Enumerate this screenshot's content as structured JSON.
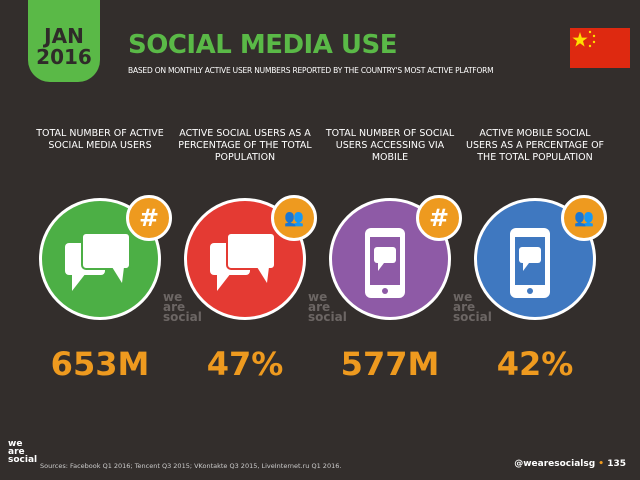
{
  "header": {
    "month": "JAN",
    "year": "2016",
    "title": "SOCIAL MEDIA USE",
    "subtitle": "BASED ON MONTHLY ACTIVE USER NUMBERS REPORTED BY THE COUNTRY'S MOST ACTIVE PLATFORM",
    "flag": "china-flag-icon"
  },
  "columns": [
    {
      "label": "TOTAL NUMBER OF ACTIVE SOCIAL MEDIA USERS",
      "value": "653M",
      "color": "#4caf45",
      "icon": "chat-bubbles-icon",
      "badge": "hashtag-icon",
      "badge_text": "#"
    },
    {
      "label": "ACTIVE SOCIAL USERS AS A PERCENTAGE OF THE TOTAL POPULATION",
      "value": "47%",
      "color": "#e43a33",
      "icon": "chat-bubbles-icon",
      "badge": "people-icon",
      "badge_text": "👥"
    },
    {
      "label": "TOTAL NUMBER OF SOCIAL USERS ACCESSING VIA MOBILE",
      "value": "577M",
      "color": "#8e5aa6",
      "icon": "mobile-chat-icon",
      "badge": "hashtag-icon",
      "badge_text": "#"
    },
    {
      "label": "ACTIVE MOBILE SOCIAL USERS AS A PERCENTAGE OF THE TOTAL POPULATION",
      "value": "42%",
      "color": "#3f78c0",
      "icon": "mobile-chat-icon",
      "badge": "people-icon",
      "badge_text": "👥"
    }
  ],
  "watermark": "we are social",
  "footer": {
    "sources": "Sources: Facebook Q1 2016; Tencent Q3 2015; VKontakte Q3 2015, LiveInternet.ru Q1 2016.",
    "handle": "@wearesocialsg",
    "page": "135",
    "logo": "we are social"
  }
}
